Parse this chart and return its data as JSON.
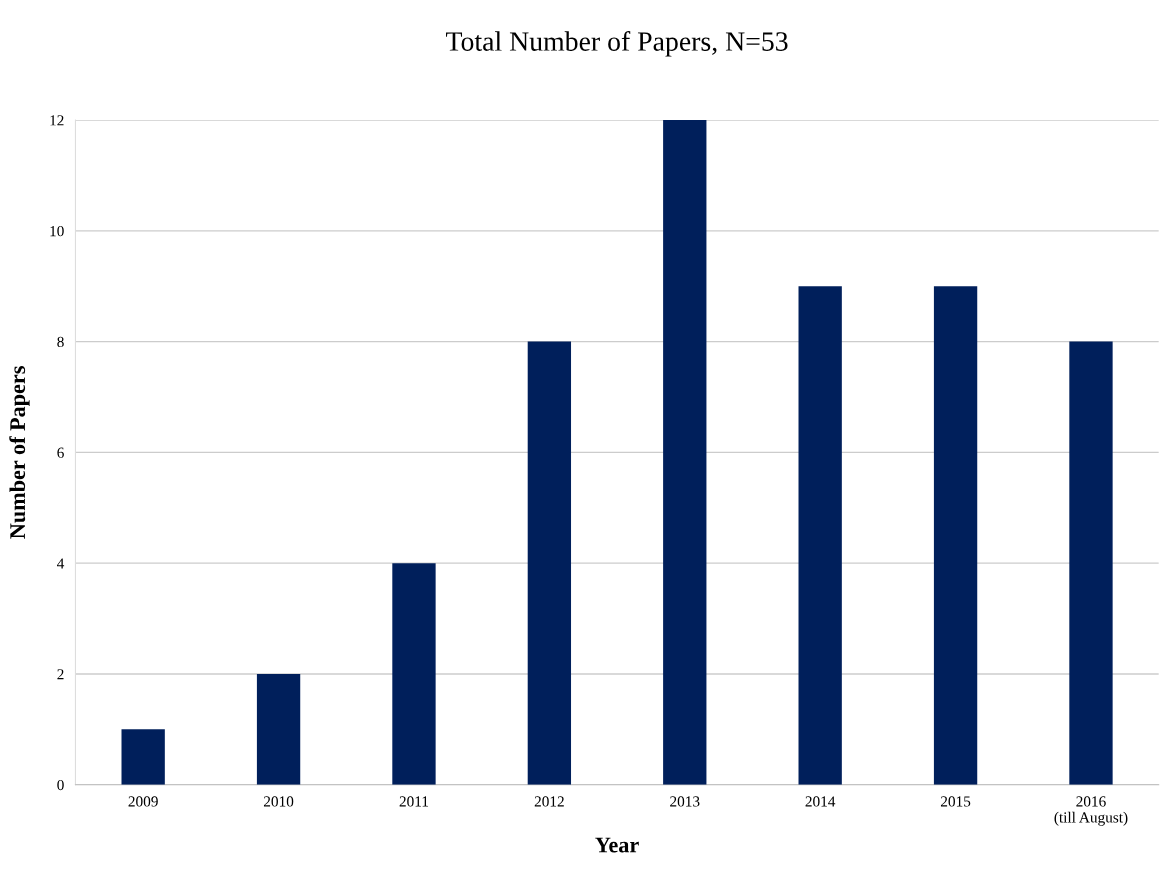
{
  "chart_data": {
    "type": "bar",
    "title": "Total Number of Papers, N=53",
    "xlabel": "Year",
    "ylabel": "Number of Papers",
    "categories": [
      "2009",
      "2010",
      "2011",
      "2012",
      "2013",
      "2014",
      "2015",
      "2016\n(till August)"
    ],
    "values": [
      1,
      2,
      4,
      8,
      12,
      9,
      9,
      8
    ],
    "color": "#001f5b",
    "ylim": [
      0,
      12
    ],
    "yticks": [
      0,
      2,
      4,
      6,
      8,
      10,
      12
    ],
    "grid": "y"
  }
}
